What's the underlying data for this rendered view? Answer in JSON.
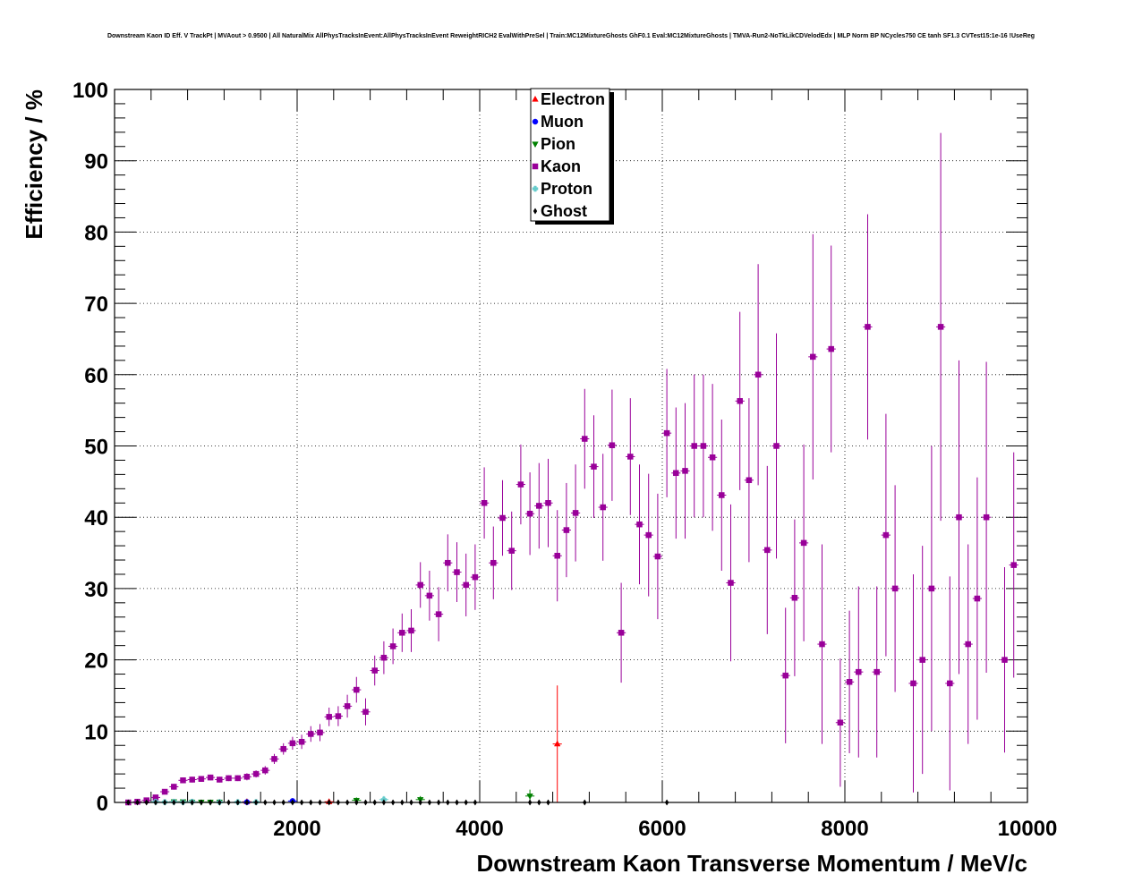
{
  "chart_data": {
    "type": "scatter",
    "title": "Downstream Kaon ID Eff. V TrackPt | MVAout > 0.9500 | All NaturalMix AllPhysTracksInEvent:AllPhysTracksInEvent ReweightRICH2 EvalWithPreSel | Train:MC12MixtureGhosts GhF0.1 Eval:MC12MixtureGhosts | TMVA-Run2-NoTkLikCDVelodEdx | MLP Norm BP NCycles750 CE tanh SF1.3 CVTest15:1e-16 !UseReg",
    "xlabel": "Downstream Kaon Transverse Momentum / MeV/c",
    "ylabel": "Efficiency / %",
    "xlim": [
      0,
      10000
    ],
    "ylim": [
      0,
      100
    ],
    "x_ticks": [
      2000,
      4000,
      6000,
      8000,
      10000
    ],
    "y_ticks": [
      0,
      10,
      20,
      30,
      40,
      50,
      60,
      70,
      80,
      90,
      100
    ],
    "x_tick_labels": [
      "2000",
      "4000",
      "6000",
      "8000",
      "10000"
    ],
    "y_tick_labels": [
      "0",
      "10",
      "20",
      "30",
      "40",
      "50",
      "60",
      "70",
      "80",
      "90",
      "100"
    ],
    "bin_half_width": 50,
    "grid": true,
    "legend_position": "top-center",
    "series": [
      {
        "name": "Electron",
        "color": "#ff0000",
        "marker": "triangle-up",
        "points": [
          [
            4850,
            8.2,
            8.2
          ],
          [
            1450,
            0.1,
            0.3
          ],
          [
            2350,
            0.1,
            0.3
          ]
        ]
      },
      {
        "name": "Muon",
        "color": "#0000ff",
        "marker": "circle",
        "points": [
          [
            1950,
            0.2,
            0.4
          ],
          [
            1450,
            0.05,
            0.2
          ]
        ]
      },
      {
        "name": "Pion",
        "color": "#008000",
        "marker": "triangle-down",
        "points": [
          [
            650,
            0.1,
            0.2
          ],
          [
            750,
            0.1,
            0.2
          ],
          [
            850,
            0.05,
            0.2
          ],
          [
            950,
            0.05,
            0.2
          ],
          [
            1050,
            0.05,
            0.2
          ],
          [
            1150,
            0.05,
            0.2
          ],
          [
            2650,
            0.3,
            0.4
          ],
          [
            3350,
            0.4,
            0.5
          ],
          [
            4550,
            0.9,
            0.9
          ]
        ]
      },
      {
        "name": "Kaon",
        "color": "#990099",
        "marker": "square",
        "points": [
          [
            150,
            0.0,
            0.2
          ],
          [
            250,
            0.1,
            0.2
          ],
          [
            350,
            0.3,
            0.2
          ],
          [
            450,
            0.7,
            0.3
          ],
          [
            550,
            1.5,
            0.3
          ],
          [
            650,
            2.2,
            0.4
          ],
          [
            750,
            3.1,
            0.4
          ],
          [
            850,
            3.2,
            0.4
          ],
          [
            950,
            3.3,
            0.4
          ],
          [
            1050,
            3.5,
            0.4
          ],
          [
            1150,
            3.2,
            0.4
          ],
          [
            1250,
            3.4,
            0.4
          ],
          [
            1350,
            3.4,
            0.4
          ],
          [
            1450,
            3.6,
            0.5
          ],
          [
            1550,
            4.0,
            0.5
          ],
          [
            1650,
            4.5,
            0.6
          ],
          [
            1750,
            6.1,
            0.7
          ],
          [
            1850,
            7.5,
            0.8
          ],
          [
            1950,
            8.3,
            0.9
          ],
          [
            2050,
            8.5,
            1.0
          ],
          [
            2150,
            9.6,
            1.1
          ],
          [
            2250,
            9.8,
            1.2
          ],
          [
            2350,
            12.0,
            1.3
          ],
          [
            2450,
            12.1,
            1.4
          ],
          [
            2550,
            13.5,
            1.6
          ],
          [
            2650,
            15.8,
            1.8
          ],
          [
            2750,
            12.7,
            1.9
          ],
          [
            2850,
            18.5,
            2.1
          ],
          [
            2950,
            20.3,
            2.3
          ],
          [
            3050,
            21.9,
            2.5
          ],
          [
            3150,
            23.8,
            2.7
          ],
          [
            3250,
            24.1,
            3.0
          ],
          [
            3350,
            30.5,
            3.2
          ],
          [
            3450,
            29.0,
            3.5
          ],
          [
            3550,
            26.4,
            3.8
          ],
          [
            3650,
            33.6,
            4.0
          ],
          [
            3750,
            32.3,
            4.2
          ],
          [
            3850,
            30.5,
            4.4
          ],
          [
            3950,
            31.6,
            4.6
          ],
          [
            4050,
            42.0,
            5.0
          ],
          [
            4150,
            33.6,
            5.1
          ],
          [
            4250,
            39.9,
            5.3
          ],
          [
            4350,
            35.3,
            5.5
          ],
          [
            4450,
            44.6,
            5.6
          ],
          [
            4550,
            40.5,
            5.8
          ],
          [
            4650,
            41.6,
            6.0
          ],
          [
            4750,
            42.0,
            6.2
          ],
          [
            4850,
            34.6,
            6.4
          ],
          [
            4950,
            38.2,
            6.6
          ],
          [
            5050,
            40.6,
            6.8
          ],
          [
            5150,
            51.0,
            7.0
          ],
          [
            5250,
            47.1,
            7.2
          ],
          [
            5350,
            41.4,
            7.5
          ],
          [
            5450,
            50.1,
            7.8
          ],
          [
            5550,
            23.8,
            7.0
          ],
          [
            5650,
            48.5,
            8.2
          ],
          [
            5750,
            39.0,
            8.4
          ],
          [
            5850,
            37.5,
            8.6
          ],
          [
            5950,
            34.5,
            8.8
          ],
          [
            6050,
            51.8,
            9.0
          ],
          [
            6150,
            46.2,
            9.2
          ],
          [
            6250,
            46.5,
            9.5
          ],
          [
            6350,
            50.0,
            10.0
          ],
          [
            6450,
            50.0,
            10.0
          ],
          [
            6550,
            48.4,
            10.3
          ],
          [
            6650,
            43.1,
            10.6
          ],
          [
            6750,
            30.8,
            11.0
          ],
          [
            6850,
            56.3,
            12.5
          ],
          [
            6950,
            45.2,
            11.5
          ],
          [
            7050,
            60.0,
            15.5
          ],
          [
            7150,
            35.4,
            11.8
          ],
          [
            7250,
            50.0,
            15.8
          ],
          [
            7350,
            17.8,
            9.5
          ],
          [
            7450,
            28.7,
            11.0
          ],
          [
            7550,
            36.4,
            13.8
          ],
          [
            7650,
            62.5,
            17.2
          ],
          [
            7750,
            22.2,
            14.0
          ],
          [
            7850,
            63.6,
            14.5
          ],
          [
            7950,
            11.2,
            9.0
          ],
          [
            8050,
            16.9,
            10.0
          ],
          [
            8150,
            18.3,
            12.0
          ],
          [
            8250,
            66.7,
            15.8
          ],
          [
            8350,
            18.3,
            12.0
          ],
          [
            8450,
            37.5,
            17.0
          ],
          [
            8550,
            30.0,
            14.5
          ],
          [
            8750,
            16.7,
            15.3
          ],
          [
            8850,
            20.0,
            16.0
          ],
          [
            8950,
            30.0,
            20.0
          ],
          [
            9050,
            66.7,
            27.2
          ],
          [
            9150,
            16.7,
            15.0
          ],
          [
            9250,
            40.0,
            22.0
          ],
          [
            9350,
            22.2,
            14.0
          ],
          [
            9450,
            28.6,
            17.0
          ],
          [
            9550,
            40.0,
            21.8
          ],
          [
            9750,
            20.0,
            13.0
          ],
          [
            9850,
            33.3,
            15.8
          ]
        ]
      },
      {
        "name": "Proton",
        "color": "#66cccc",
        "marker": "cross",
        "points": [
          [
            450,
            0.1,
            0.2
          ],
          [
            550,
            0.05,
            0.2
          ],
          [
            650,
            0.1,
            0.2
          ],
          [
            750,
            0.05,
            0.2
          ],
          [
            850,
            0.1,
            0.2
          ],
          [
            1150,
            0.05,
            0.2
          ],
          [
            1350,
            0.05,
            0.2
          ],
          [
            1550,
            0.05,
            0.2
          ],
          [
            2950,
            0.4,
            0.5
          ]
        ]
      },
      {
        "name": "Ghost",
        "color": "#000000",
        "marker": "diamond",
        "points": [
          [
            150,
            0.0,
            0.05
          ],
          [
            250,
            0.0,
            0.05
          ],
          [
            350,
            0.0,
            0.05
          ],
          [
            450,
            0.0,
            0.05
          ],
          [
            550,
            0.0,
            0.05
          ],
          [
            650,
            0.0,
            0.05
          ],
          [
            750,
            0.0,
            0.05
          ],
          [
            850,
            0.0,
            0.05
          ],
          [
            950,
            0.0,
            0.05
          ],
          [
            1050,
            0.0,
            0.05
          ],
          [
            1150,
            0.0,
            0.05
          ],
          [
            1250,
            0.0,
            0.05
          ],
          [
            1350,
            0.0,
            0.05
          ],
          [
            1450,
            0.0,
            0.05
          ],
          [
            1550,
            0.0,
            0.05
          ],
          [
            1650,
            0.0,
            0.05
          ],
          [
            1750,
            0.0,
            0.05
          ],
          [
            1850,
            0.0,
            0.05
          ],
          [
            1950,
            0.0,
            0.05
          ],
          [
            2050,
            0.0,
            0.05
          ],
          [
            2150,
            0.0,
            0.05
          ],
          [
            2250,
            0.0,
            0.05
          ],
          [
            2350,
            0.0,
            0.05
          ],
          [
            2450,
            0.0,
            0.05
          ],
          [
            2550,
            0.0,
            0.05
          ],
          [
            2650,
            0.0,
            0.05
          ],
          [
            2750,
            0.0,
            0.05
          ],
          [
            2850,
            0.0,
            0.05
          ],
          [
            2950,
            0.0,
            0.05
          ],
          [
            3050,
            0.0,
            0.05
          ],
          [
            3150,
            0.0,
            0.05
          ],
          [
            3250,
            0.0,
            0.05
          ],
          [
            3350,
            0.0,
            0.05
          ],
          [
            3450,
            0.0,
            0.05
          ],
          [
            3550,
            0.0,
            0.05
          ],
          [
            3650,
            0.0,
            0.05
          ],
          [
            3750,
            0.0,
            0.05
          ],
          [
            3850,
            0.0,
            0.05
          ],
          [
            3950,
            0.0,
            0.05
          ],
          [
            4550,
            0.0,
            0.05
          ],
          [
            4650,
            0.0,
            0.05
          ],
          [
            4750,
            0.0,
            0.05
          ],
          [
            5150,
            0.0,
            0.05
          ],
          [
            6050,
            0.0,
            0.05
          ]
        ]
      }
    ]
  }
}
